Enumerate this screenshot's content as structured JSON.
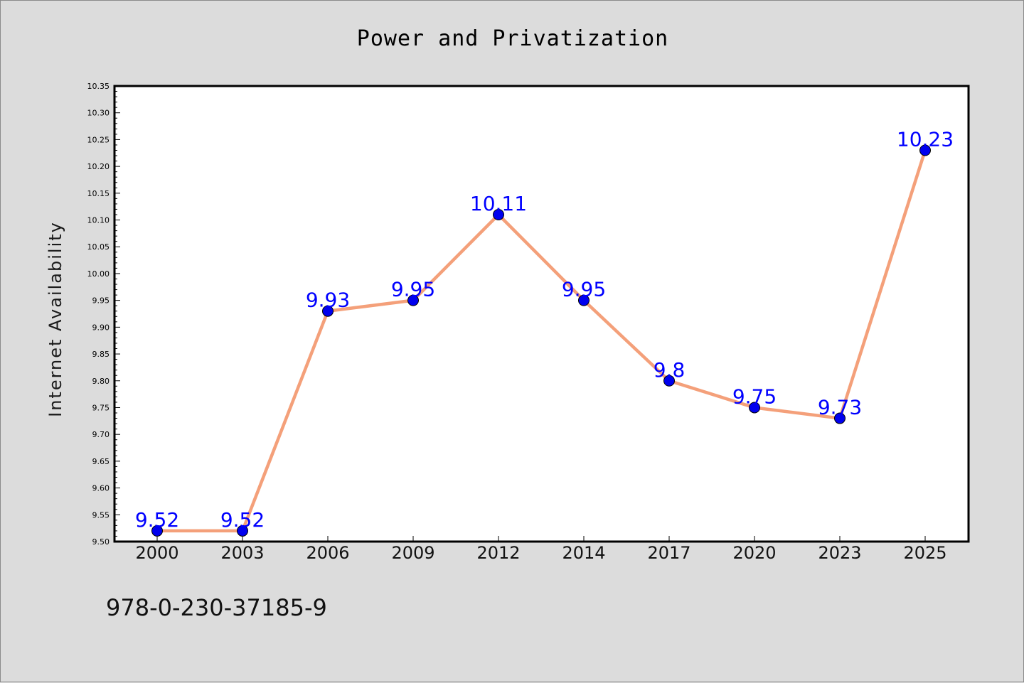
{
  "chart_data": {
    "type": "line",
    "title": "Power and Privatization",
    "xlabel": "",
    "ylabel": "Internet Availability",
    "categories": [
      "2000",
      "2003",
      "2006",
      "2009",
      "2012",
      "2014",
      "2017",
      "2020",
      "2023",
      "2025"
    ],
    "series": [
      {
        "values": [
          9.52,
          9.52,
          9.93,
          9.95,
          10.11,
          9.95,
          9.8,
          9.75,
          9.73,
          10.23
        ],
        "data_labels": [
          "9.52",
          "9.52",
          "9.93",
          "9.95",
          "10.11",
          "9.95",
          "9.8",
          "9.75",
          "9.73",
          "10.23"
        ],
        "line_color": "#f4a07a",
        "marker_color": "#0000ee"
      }
    ],
    "ylim": [
      9.5,
      10.35
    ],
    "yticks": [
      "9.50",
      "9.55",
      "9.60",
      "9.65",
      "9.70",
      "9.75",
      "9.80",
      "9.85",
      "9.90",
      "9.95",
      "10.00",
      "10.05",
      "10.10",
      "10.15",
      "10.20",
      "10.25",
      "10.30",
      "10.35"
    ],
    "grid": false,
    "legend": "none",
    "label_color": "#0000ff"
  },
  "footer_text": "978-0-230-37185-9"
}
